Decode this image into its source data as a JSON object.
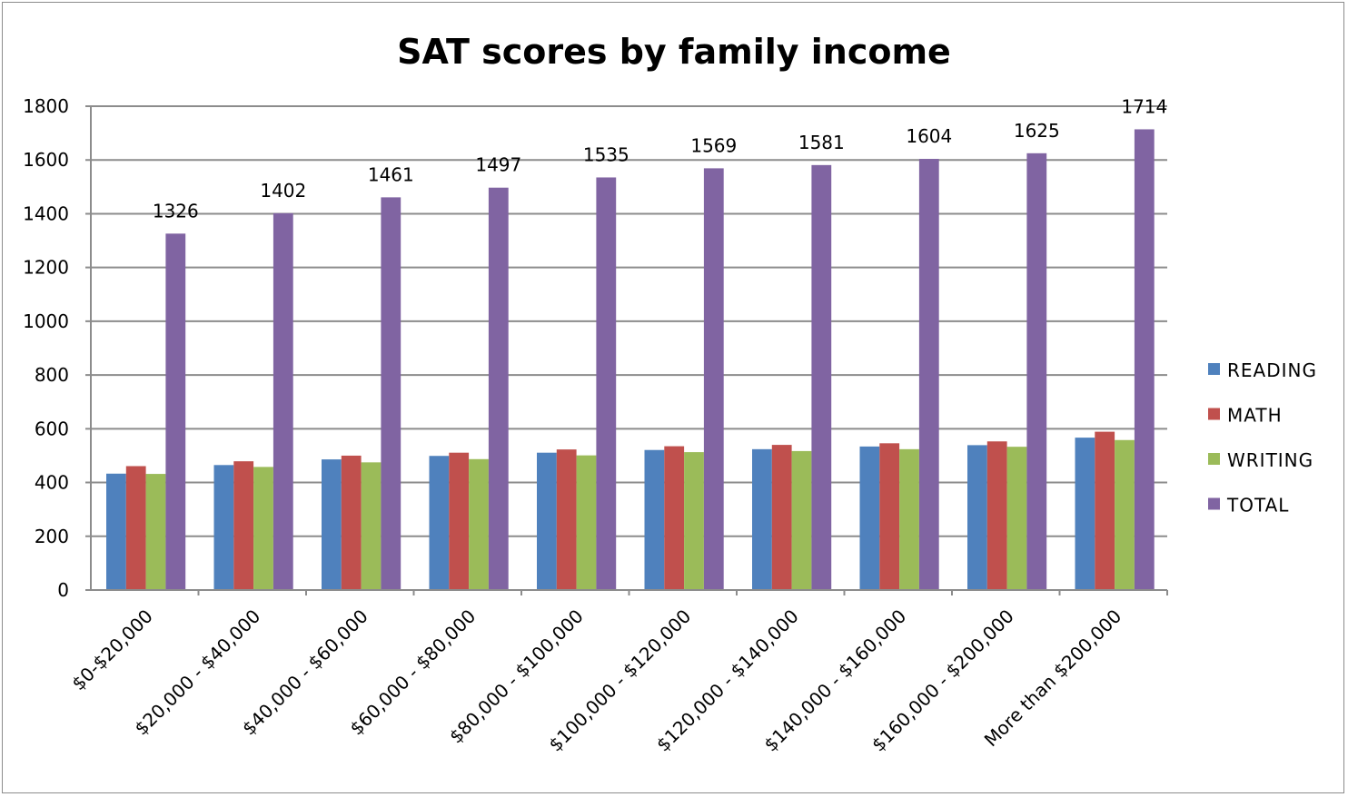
{
  "chart_data": {
    "type": "bar",
    "title": "SAT scores by family income",
    "xlabel": "",
    "ylabel": "",
    "ylim": [
      0,
      1800
    ],
    "yticks": [
      0,
      200,
      400,
      600,
      800,
      1000,
      1200,
      1400,
      1600,
      1800
    ],
    "grid": true,
    "legend_position": "right",
    "categories": [
      "$0-$20,000",
      "$20,000 - $40,000",
      "$40,000 - $60,000",
      "$60,000 - $80,000",
      "$80,000 - $100,000",
      "$100,000 - $120,000",
      "$120,000 - $140,000",
      "$140,000 - $160,000",
      "$160,000 - $200,000",
      "More than $200,000"
    ],
    "series": [
      {
        "name": "READING",
        "color": "#4f81bd",
        "values": [
          433,
          465,
          486,
          499,
          511,
          521,
          524,
          534,
          539,
          567
        ]
      },
      {
        "name": "MATH",
        "color": "#c0504d",
        "values": [
          461,
          479,
          500,
          511,
          523,
          535,
          540,
          546,
          553,
          589
        ]
      },
      {
        "name": "WRITING",
        "color": "#9bbb59",
        "values": [
          432,
          458,
          475,
          487,
          501,
          513,
          517,
          524,
          533,
          558
        ]
      },
      {
        "name": "TOTAL",
        "color": "#8064a2",
        "values": [
          1326,
          1402,
          1461,
          1497,
          1535,
          1569,
          1581,
          1604,
          1625,
          1714
        ],
        "data_labels": true
      }
    ]
  }
}
